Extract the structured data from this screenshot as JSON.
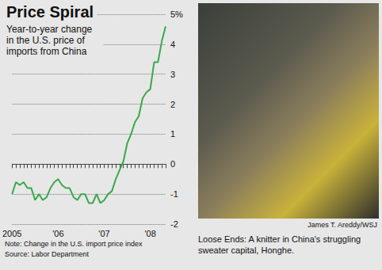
{
  "chart_data": {
    "type": "line",
    "title": "Price Spiral",
    "subtitle": "Year-to-year change in the U.S. price of imports from China",
    "categories": [
      "2005",
      null,
      null,
      null,
      null,
      null,
      null,
      null,
      null,
      null,
      null,
      null,
      "'06",
      null,
      null,
      null,
      null,
      null,
      null,
      null,
      null,
      null,
      null,
      null,
      "'07",
      null,
      null,
      null,
      null,
      null,
      null,
      null,
      null,
      null,
      null,
      null,
      "'08",
      null,
      null,
      null,
      null
    ],
    "values": [
      -1.0,
      -0.6,
      -0.7,
      -0.6,
      -0.8,
      -0.8,
      -1.2,
      -1.0,
      -1.2,
      -1.1,
      -0.8,
      -0.6,
      -0.5,
      -0.7,
      -0.8,
      -0.8,
      -1.1,
      -1.2,
      -1.0,
      -1.0,
      -1.3,
      -1.3,
      -1.0,
      -1.3,
      -1.2,
      -1.0,
      -0.9,
      -0.5,
      -0.2,
      0.1,
      0.7,
      1.0,
      1.4,
      1.6,
      2.2,
      2.4,
      2.5,
      3.4,
      3.4,
      4.1,
      4.6
    ],
    "color": "#3aa84a",
    "ylim": [
      -2,
      5
    ],
    "yticks": [
      -2,
      -1,
      0,
      1,
      2,
      3,
      4,
      {
        "value": 5,
        "label": "5%"
      }
    ],
    "grid": true,
    "note": "Note: Change in the U.S. import price index",
    "source": "Source: Labor Department"
  },
  "photo": {
    "credit": "James T. Areddy/WSJ",
    "caption": "Loose Ends: A knitter in China's struggling sweater capital, Honghe."
  }
}
